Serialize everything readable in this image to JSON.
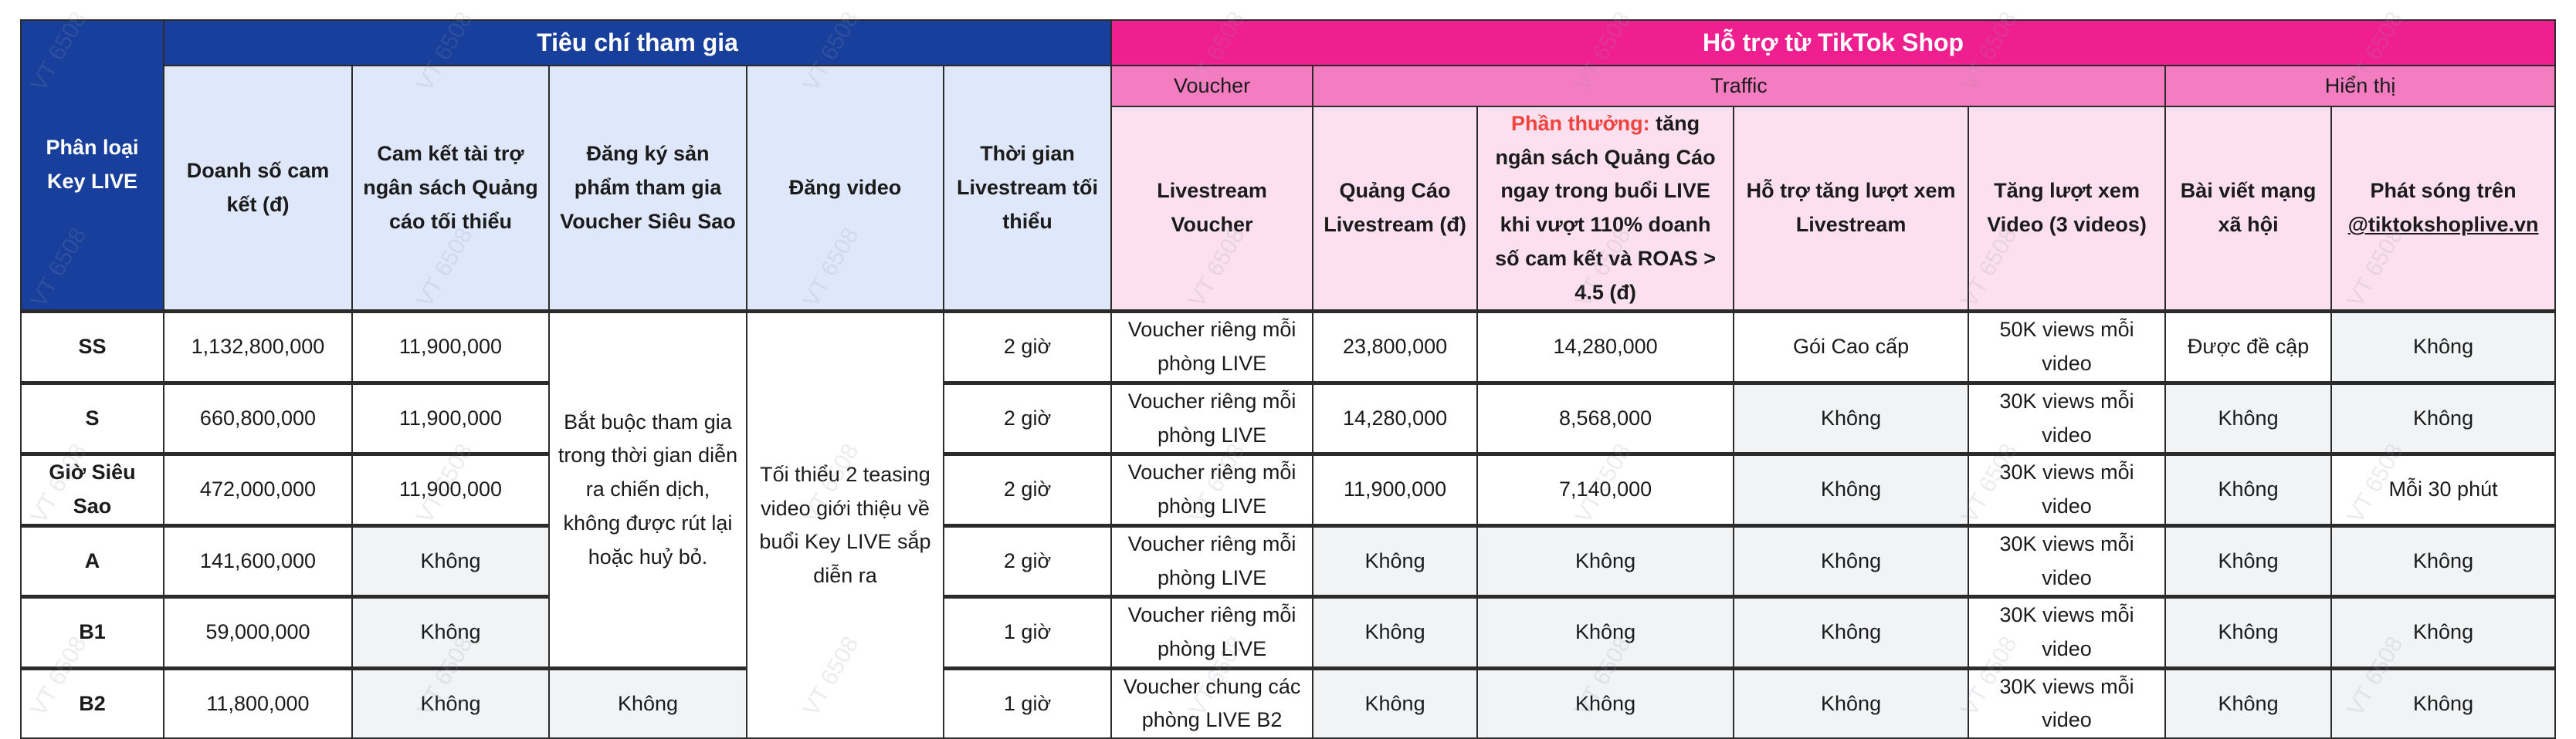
{
  "watermark": "VT 6508",
  "header": {
    "tier_label": "Phân loại Key LIVE",
    "criteria_title": "Tiêu chí tham gia",
    "support_title": "Hỗ trợ từ TikTok Shop",
    "groups": {
      "voucher": "Voucher",
      "traffic": "Traffic",
      "display": "Hiển thị"
    },
    "columns": {
      "sales": "Doanh số cam kết (đ)",
      "ad_budget": "Cam kết tài trợ ngân sách Quảng cáo tối thiểu",
      "register": "Đăng ký sản phẩm tham gia Voucher Siêu Sao",
      "video": "Đăng video",
      "min_time": "Thời gian Livestream tối thiểu",
      "live_voucher": "Livestream Voucher",
      "live_ads": "Quảng Cáo Livestream (đ)",
      "reward_label": "Phần thưởng:",
      "reward_text": "tăng ngân sách Quảng Cáo ngay trong buổi LIVE khi vượt 110% doanh số cam kết và ROAS > 4.5 (đ)",
      "view_boost": "Hỗ trợ tăng lượt xem Livestream",
      "video_views": "Tăng lượt xem Video (3 videos)",
      "social_post": "Bài viết mạng xã hội",
      "broadcast_prefix": "Phát sóng trên",
      "broadcast_handle": "@tiktokshoplive.vn"
    }
  },
  "colors": {
    "criteria": "#183f9b",
    "criteria_light": "#dfe8fb",
    "support": "#f01f90",
    "support_mid": "#f47cc0",
    "support_light": "#fde0ef",
    "unavailable": "#f2f3f4",
    "reward": "#f0443f"
  },
  "rows": [
    [
      "SS",
      "1,132,800,000",
      "11,900,000",
      "Bắt buộc tham gia trong thời gian diễn ra chiến dịch, không được rút lại hoặc huỷ bỏ.",
      "Tối thiểu 2 teasing video giới thiệu về buổi Key LIVE sắp diễn ra",
      "2 giờ",
      "Voucher riêng mỗi phòng LIVE",
      "23,800,000",
      "14,280,000",
      "Gói Cao cấp",
      "50K views mỗi video",
      "Được đề cập",
      "Không"
    ],
    [
      "S",
      "660,800,000",
      "11,900,000",
      null,
      null,
      "2 giờ",
      "Voucher riêng mỗi phòng LIVE",
      "14,280,000",
      "8,568,000",
      "Không",
      "30K views mỗi video",
      "Không",
      "Không"
    ],
    [
      "Giờ Siêu Sao",
      "472,000,000",
      "11,900,000",
      null,
      null,
      "2 giờ",
      "Voucher riêng mỗi phòng LIVE",
      "11,900,000",
      "7,140,000",
      "Không",
      "30K views mỗi video",
      "Không",
      "Mỗi 30 phút"
    ],
    [
      "A",
      "141,600,000",
      "Không",
      null,
      null,
      "2 giờ",
      "Voucher riêng mỗi phòng LIVE",
      "Không",
      "Không",
      "Không",
      "30K views mỗi video",
      "Không",
      "Không"
    ],
    [
      "B1",
      "59,000,000",
      "Không",
      null,
      null,
      "1 giờ",
      "Voucher riêng mỗi phòng LIVE",
      "Không",
      "Không",
      "Không",
      "30K views mỗi video",
      "Không",
      "Không"
    ],
    [
      "B2",
      "11,800,000",
      "Không",
      "Không",
      null,
      "1 giờ",
      "Voucher chung các phòng LIVE B2",
      "Không",
      "Không",
      "Không",
      "30K views mỗi video",
      "Không",
      "Không"
    ]
  ]
}
